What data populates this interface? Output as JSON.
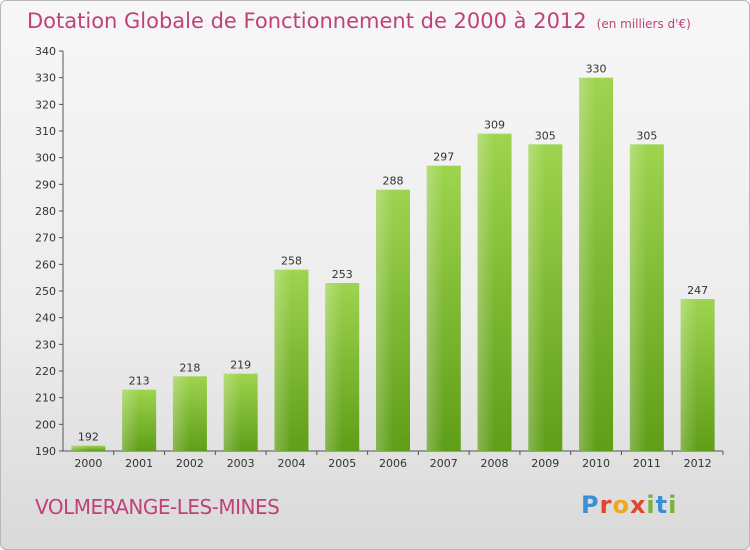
{
  "title": "Dotation Globale de Fonctionnement de 2000 à 2012",
  "unit": "(en milliers d'€)",
  "commune": "VOLMERANGE-LES-MINES",
  "logo": "Proxiti",
  "chart_data": {
    "type": "bar",
    "title": "Dotation Globale de Fonctionnement de 2000 à 2012",
    "subtitle": "(en milliers d'€)",
    "xlabel": "",
    "ylabel": "",
    "categories": [
      "2000",
      "2001",
      "2002",
      "2003",
      "2004",
      "2005",
      "2006",
      "2007",
      "2008",
      "2009",
      "2010",
      "2011",
      "2012"
    ],
    "values": [
      192,
      213,
      218,
      219,
      258,
      253,
      288,
      297,
      309,
      305,
      330,
      305,
      247
    ],
    "ylim": [
      190,
      340
    ],
    "yticks": [
      190,
      200,
      210,
      220,
      230,
      240,
      250,
      260,
      270,
      280,
      290,
      300,
      310,
      320,
      330,
      340
    ],
    "grid": false,
    "data_labels": true,
    "bar_color": "#7cc035"
  }
}
